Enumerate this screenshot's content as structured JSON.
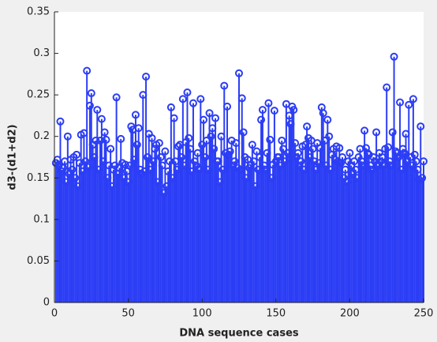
{
  "chart_data": {
    "type": "stem",
    "xlabel": "DNA sequence cases",
    "ylabel": "d3-(d1+d2)",
    "color": "#2b3df5",
    "xlim": [
      0,
      250
    ],
    "xticks": [
      0,
      50,
      100,
      150,
      200,
      250
    ],
    "ylim": [
      0,
      0.35
    ],
    "yticks": [
      0,
      0.05,
      0.1,
      0.15,
      0.2,
      0.25,
      0.3,
      0.35
    ],
    "x": [
      1,
      2,
      3,
      4,
      5,
      6,
      7,
      8,
      9,
      10,
      11,
      12,
      13,
      14,
      15,
      16,
      17,
      18,
      19,
      20,
      21,
      22,
      23,
      24,
      25,
      26,
      27,
      28,
      29,
      30,
      31,
      32,
      33,
      34,
      35,
      36,
      37,
      38,
      39,
      40,
      41,
      42,
      43,
      44,
      45,
      46,
      47,
      48,
      49,
      50,
      51,
      52,
      53,
      54,
      55,
      56,
      57,
      58,
      59,
      60,
      61,
      62,
      63,
      64,
      65,
      66,
      67,
      68,
      69,
      70,
      71,
      72,
      73,
      74,
      75,
      76,
      77,
      78,
      79,
      80,
      81,
      82,
      83,
      84,
      85,
      86,
      87,
      88,
      89,
      90,
      91,
      92,
      93,
      94,
      95,
      96,
      97,
      98,
      99,
      100,
      101,
      102,
      103,
      104,
      105,
      106,
      107,
      108,
      109,
      110,
      111,
      112,
      113,
      114,
      115,
      116,
      117,
      118,
      119,
      120,
      121,
      122,
      123,
      124,
      125,
      126,
      127,
      128,
      129,
      130,
      131,
      132,
      133,
      134,
      135,
      136,
      137,
      138,
      139,
      140,
      141,
      142,
      143,
      144,
      145,
      146,
      147,
      148,
      149,
      150,
      151,
      152,
      153,
      154,
      155,
      156,
      157,
      158,
      159,
      160,
      161,
      162,
      163,
      164,
      165,
      166,
      167,
      168,
      169,
      170,
      171,
      172,
      173,
      174,
      175,
      176,
      177,
      178,
      179,
      180,
      181,
      182,
      183,
      184,
      185,
      186,
      187,
      188,
      189,
      190,
      191,
      192,
      193,
      194,
      195,
      196,
      197,
      198,
      199,
      200,
      201,
      202,
      203,
      204,
      205,
      206,
      207,
      208,
      209,
      210,
      211,
      212,
      213,
      214,
      215,
      216,
      217,
      218,
      219,
      220,
      221,
      222,
      223,
      224,
      225,
      226,
      227,
      228,
      229,
      230,
      231,
      232,
      233,
      234,
      235,
      236,
      237,
      238,
      239,
      240,
      241,
      242,
      243,
      244,
      245,
      246,
      247,
      248,
      249,
      250
    ],
    "values": [
      0.168,
      0.172,
      0.165,
      0.218,
      0.158,
      0.162,
      0.17,
      0.145,
      0.2,
      0.155,
      0.172,
      0.16,
      0.175,
      0.15,
      0.178,
      0.14,
      0.168,
      0.202,
      0.158,
      0.204,
      0.17,
      0.279,
      0.163,
      0.237,
      0.252,
      0.19,
      0.175,
      0.195,
      0.232,
      0.16,
      0.195,
      0.221,
      0.17,
      0.205,
      0.196,
      0.15,
      0.165,
      0.185,
      0.14,
      0.16,
      0.165,
      0.247,
      0.155,
      0.162,
      0.197,
      0.168,
      0.15,
      0.166,
      0.158,
      0.145,
      0.165,
      0.212,
      0.208,
      0.172,
      0.226,
      0.19,
      0.21,
      0.16,
      0.155,
      0.25,
      0.158,
      0.272,
      0.175,
      0.203,
      0.16,
      0.198,
      0.17,
      0.185,
      0.19,
      0.145,
      0.192,
      0.175,
      0.165,
      0.132,
      0.182,
      0.14,
      0.158,
      0.17,
      0.235,
      0.15,
      0.222,
      0.17,
      0.16,
      0.188,
      0.19,
      0.175,
      0.245,
      0.165,
      0.193,
      0.253,
      0.198,
      0.185,
      0.158,
      0.24,
      0.17,
      0.165,
      0.18,
      0.16,
      0.245,
      0.19,
      0.22,
      0.175,
      0.195,
      0.16,
      0.228,
      0.2,
      0.21,
      0.185,
      0.222,
      0.17,
      0.17,
      0.145,
      0.2,
      0.16,
      0.261,
      0.18,
      0.236,
      0.178,
      0.182,
      0.195,
      0.165,
      0.17,
      0.192,
      0.162,
      0.276,
      0.16,
      0.246,
      0.205,
      0.175,
      0.15,
      0.172,
      0.162,
      0.166,
      0.19,
      0.17,
      0.14,
      0.182,
      0.16,
      0.175,
      0.22,
      0.232,
      0.165,
      0.16,
      0.18,
      0.24,
      0.196,
      0.15,
      0.166,
      0.231,
      0.17,
      0.175,
      0.175,
      0.165,
      0.195,
      0.185,
      0.17,
      0.239,
      0.18,
      0.225,
      0.215,
      0.236,
      0.232,
      0.192,
      0.175,
      0.18,
      0.165,
      0.17,
      0.188,
      0.16,
      0.19,
      0.212,
      0.198,
      0.175,
      0.195,
      0.185,
      0.17,
      0.16,
      0.192,
      0.168,
      0.186,
      0.235,
      0.228,
      0.195,
      0.165,
      0.22,
      0.2,
      0.16,
      0.178,
      0.185,
      0.172,
      0.188,
      0.17,
      0.186,
      0.168,
      0.175,
      0.15,
      0.16,
      0.145,
      0.17,
      0.18,
      0.165,
      0.155,
      0.17,
      0.16,
      0.15,
      0.175,
      0.185,
      0.17,
      0.165,
      0.207,
      0.186,
      0.18,
      0.178,
      0.165,
      0.16,
      0.175,
      0.17,
      0.205,
      0.165,
      0.18,
      0.17,
      0.175,
      0.165,
      0.185,
      0.259,
      0.187,
      0.17,
      0.165,
      0.205,
      0.296,
      0.182,
      0.18,
      0.175,
      0.241,
      0.16,
      0.185,
      0.18,
      0.203,
      0.17,
      0.238,
      0.175,
      0.165,
      0.245,
      0.178,
      0.17,
      0.16,
      0.148,
      0.212,
      0.15,
      0.17
    ]
  }
}
